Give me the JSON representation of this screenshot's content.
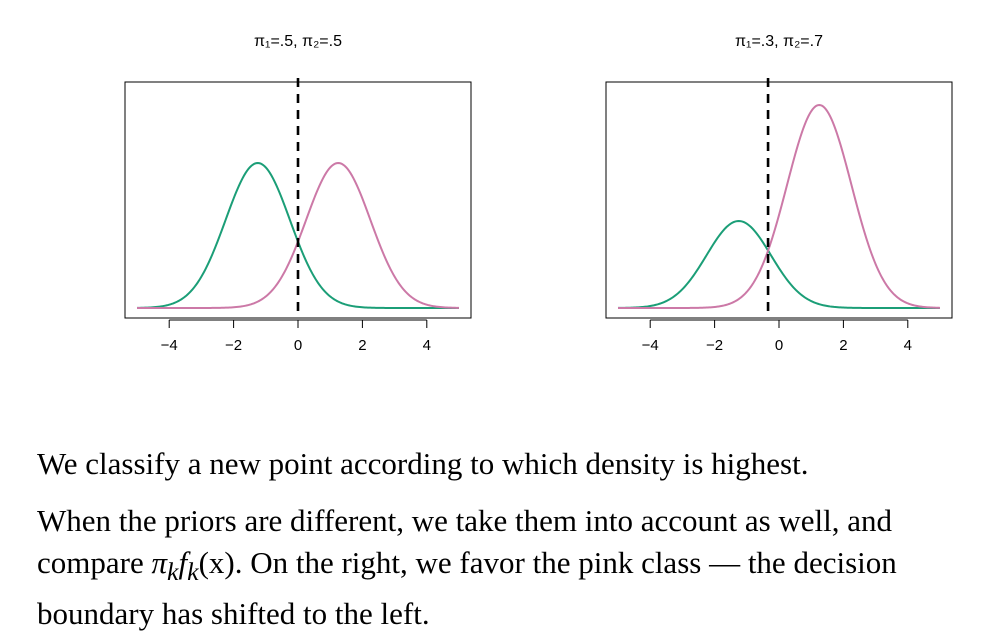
{
  "chart_data": [
    {
      "type": "line",
      "title": "π₁=.5,   π₂=.5",
      "xlim": [
        -5,
        5
      ],
      "xticks": [
        -4,
        -2,
        0,
        2,
        4
      ],
      "xtick_labels": [
        "−4",
        "−2",
        "0",
        "2",
        "4"
      ],
      "grid": false,
      "series": [
        {
          "color": "#1b9e77",
          "prior": 0.5,
          "mean": -1.25,
          "sd": 1.0
        },
        {
          "color": "#cc79a7",
          "prior": 0.5,
          "mean": 1.25,
          "sd": 1.0
        }
      ],
      "decision_boundary": 0
    },
    {
      "type": "line",
      "title": "π₁=.3,   π₂=.7",
      "xlim": [
        -5,
        5
      ],
      "xticks": [
        -4,
        -2,
        0,
        2,
        4
      ],
      "xtick_labels": [
        "−4",
        "−2",
        "0",
        "2",
        "4"
      ],
      "grid": false,
      "series": [
        {
          "color": "#1b9e77",
          "prior": 0.3,
          "mean": -1.25,
          "sd": 1.0
        },
        {
          "color": "#cc79a7",
          "prior": 0.7,
          "mean": 1.25,
          "sd": 1.0
        }
      ],
      "decision_boundary": -0.34
    }
  ],
  "text": {
    "p1": "We classify a new point according to which density is highest.",
    "p2_a": "When the priors are different, we take them into account as well, and compare ",
    "p2_math": "π",
    "p2_math_sub1": "k",
    "p2_math_f": "f",
    "p2_math_sub2": "k",
    "p2_math_arg": "(x)",
    "p2_b": ". On the right, we favor the pink class — the decision boundary has shifted to the left."
  }
}
